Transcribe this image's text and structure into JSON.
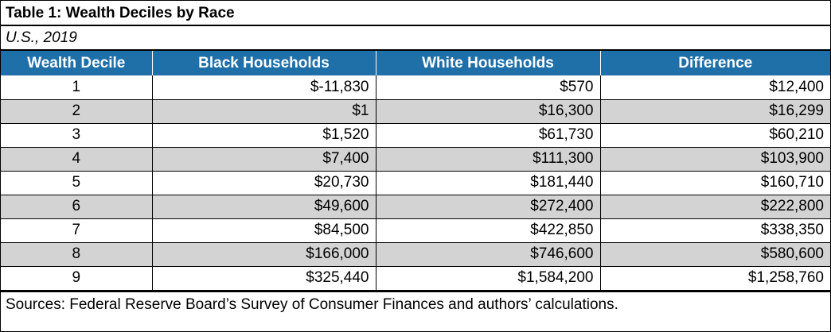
{
  "chart_data": {
    "type": "table",
    "title": "Table 1: Wealth Deciles by Race",
    "subtitle": "U.S., 2019",
    "columns": [
      "Wealth Decile",
      "Black Households",
      "White Households",
      "Difference"
    ],
    "rows": [
      {
        "decile": "1",
        "black": "$-11,830",
        "white": "$570",
        "difference": "$12,400"
      },
      {
        "decile": "2",
        "black": "$1",
        "white": "$16,300",
        "difference": "$16,299"
      },
      {
        "decile": "3",
        "black": "$1,520",
        "white": "$61,730",
        "difference": "$60,210"
      },
      {
        "decile": "4",
        "black": "$7,400",
        "white": "$111,300",
        "difference": "$103,900"
      },
      {
        "decile": "5",
        "black": "$20,730",
        "white": "$181,440",
        "difference": "$160,710"
      },
      {
        "decile": "6",
        "black": "$49,600",
        "white": "$272,400",
        "difference": "$222,800"
      },
      {
        "decile": "7",
        "black": "$84,500",
        "white": "$422,850",
        "difference": "$338,350"
      },
      {
        "decile": "8",
        "black": "$166,000",
        "white": "$746,600",
        "difference": "$580,600"
      },
      {
        "decile": "9",
        "black": "$325,440",
        "white": "$1,584,200",
        "difference": "$1,258,760"
      }
    ],
    "source": "Sources: Federal Reserve Board’s Survey of Consumer Finances and authors’ calculations.",
    "colors": {
      "header_bg": "#1f6fa8",
      "header_text": "#ffffff",
      "shaded_row": "#d3d3d3"
    }
  }
}
